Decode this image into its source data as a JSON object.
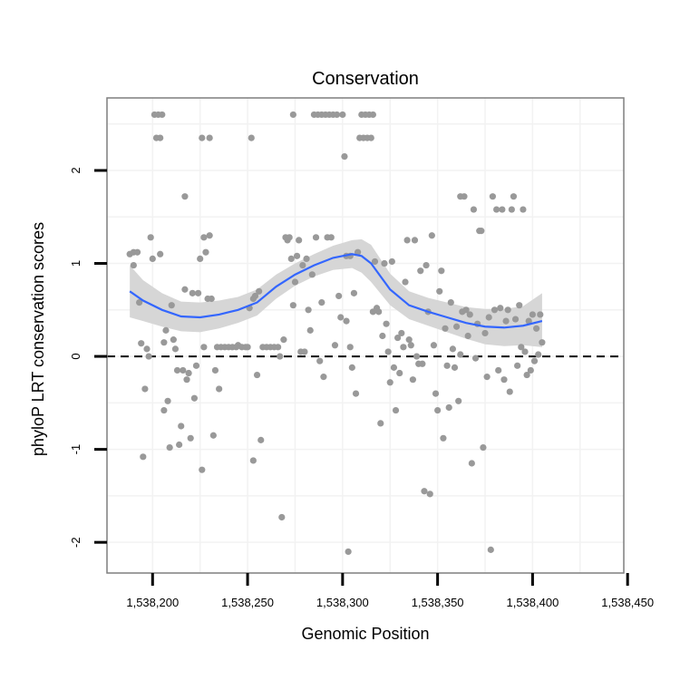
{
  "chart_data": {
    "type": "scatter",
    "title": "Conservation",
    "xlabel": "Genomic Position",
    "ylabel": "phyloP LRT conservation scores",
    "xlim": [
      1538176,
      1538448
    ],
    "ylim": [
      -2.33,
      2.78
    ],
    "x_ticks": [
      1538200,
      1538250,
      1538300,
      1538350,
      1538400,
      1538450
    ],
    "x_tick_labels": [
      "1,538,200",
      "1,538,250",
      "1,538,300",
      "1,538,350",
      "1,538,400",
      "1,538,450"
    ],
    "y_ticks": [
      -2,
      -1,
      0,
      1,
      2
    ],
    "y_tick_labels": [
      "-2",
      "-1",
      "0",
      "1",
      "2"
    ],
    "grid": true,
    "reference_line": {
      "y": 0,
      "style": "dashed",
      "color": "#000000"
    },
    "point_color": "#999999",
    "smooth_color": "#3366ff",
    "band_color": "#d6d6d6",
    "points": [
      [
        1538188,
        1.1
      ],
      [
        1538190,
        0.98
      ],
      [
        1538190,
        1.12
      ],
      [
        1538192,
        1.12
      ],
      [
        1538193,
        0.58
      ],
      [
        1538194,
        0.14
      ],
      [
        1538195,
        -1.08
      ],
      [
        1538196,
        -0.35
      ],
      [
        1538197,
        0.08
      ],
      [
        1538198,
        0.0
      ],
      [
        1538199,
        1.28
      ],
      [
        1538200,
        1.05
      ],
      [
        1538201,
        2.6
      ],
      [
        1538202,
        2.35
      ],
      [
        1538203,
        2.6
      ],
      [
        1538204,
        2.35
      ],
      [
        1538204,
        1.1
      ],
      [
        1538205,
        2.6
      ],
      [
        1538206,
        0.15
      ],
      [
        1538206,
        -0.58
      ],
      [
        1538207,
        0.28
      ],
      [
        1538208,
        -0.48
      ],
      [
        1538209,
        -0.98
      ],
      [
        1538210,
        0.55
      ],
      [
        1538211,
        0.18
      ],
      [
        1538212,
        0.08
      ],
      [
        1538213,
        -0.15
      ],
      [
        1538214,
        -0.95
      ],
      [
        1538215,
        -0.75
      ],
      [
        1538216,
        -0.15
      ],
      [
        1538217,
        1.72
      ],
      [
        1538217,
        0.72
      ],
      [
        1538218,
        -0.25
      ],
      [
        1538219,
        -0.18
      ],
      [
        1538220,
        -0.88
      ],
      [
        1538221,
        0.68
      ],
      [
        1538222,
        -0.45
      ],
      [
        1538223,
        -0.1
      ],
      [
        1538224,
        0.68
      ],
      [
        1538225,
        1.05
      ],
      [
        1538226,
        2.35
      ],
      [
        1538226,
        -1.22
      ],
      [
        1538227,
        1.28
      ],
      [
        1538227,
        0.1
      ],
      [
        1538228,
        1.12
      ],
      [
        1538229,
        0.62
      ],
      [
        1538230,
        2.35
      ],
      [
        1538230,
        1.3
      ],
      [
        1538231,
        0.62
      ],
      [
        1538232,
        -0.85
      ],
      [
        1538233,
        -0.15
      ],
      [
        1538234,
        0.1
      ],
      [
        1538235,
        -0.35
      ],
      [
        1538236,
        0.1
      ],
      [
        1538238,
        0.1
      ],
      [
        1538240,
        0.1
      ],
      [
        1538242,
        0.1
      ],
      [
        1538244,
        0.1
      ],
      [
        1538245,
        0.12
      ],
      [
        1538247,
        0.1
      ],
      [
        1538249,
        0.1
      ],
      [
        1538250,
        0.1
      ],
      [
        1538251,
        0.52
      ],
      [
        1538252,
        2.35
      ],
      [
        1538253,
        0.62
      ],
      [
        1538253,
        -1.12
      ],
      [
        1538254,
        0.65
      ],
      [
        1538255,
        -0.2
      ],
      [
        1538256,
        0.7
      ],
      [
        1538257,
        -0.9
      ],
      [
        1538258,
        0.1
      ],
      [
        1538260,
        0.1
      ],
      [
        1538262,
        0.1
      ],
      [
        1538264,
        0.1
      ],
      [
        1538266,
        0.1
      ],
      [
        1538267,
        0.0
      ],
      [
        1538268,
        -1.73
      ],
      [
        1538269,
        0.18
      ],
      [
        1538270,
        1.28
      ],
      [
        1538271,
        1.25
      ],
      [
        1538272,
        1.28
      ],
      [
        1538273,
        1.05
      ],
      [
        1538274,
        2.6
      ],
      [
        1538274,
        0.55
      ],
      [
        1538275,
        0.8
      ],
      [
        1538276,
        1.08
      ],
      [
        1538277,
        1.25
      ],
      [
        1538278,
        0.05
      ],
      [
        1538279,
        0.98
      ],
      [
        1538280,
        0.05
      ],
      [
        1538281,
        1.05
      ],
      [
        1538282,
        0.5
      ],
      [
        1538283,
        0.28
      ],
      [
        1538284,
        0.88
      ],
      [
        1538285,
        2.6
      ],
      [
        1538286,
        1.28
      ],
      [
        1538287,
        2.6
      ],
      [
        1538288,
        -0.05
      ],
      [
        1538289,
        2.6
      ],
      [
        1538289,
        0.58
      ],
      [
        1538290,
        -0.22
      ],
      [
        1538291,
        2.6
      ],
      [
        1538292,
        1.28
      ],
      [
        1538293,
        2.6
      ],
      [
        1538294,
        1.28
      ],
      [
        1538295,
        2.6
      ],
      [
        1538296,
        0.12
      ],
      [
        1538297,
        2.6
      ],
      [
        1538298,
        0.65
      ],
      [
        1538299,
        0.42
      ],
      [
        1538300,
        2.6
      ],
      [
        1538301,
        2.15
      ],
      [
        1538302,
        1.08
      ],
      [
        1538302,
        0.38
      ],
      [
        1538303,
        -2.1
      ],
      [
        1538304,
        1.08
      ],
      [
        1538304,
        0.1
      ],
      [
        1538305,
        -0.12
      ],
      [
        1538306,
        0.68
      ],
      [
        1538307,
        -0.4
      ],
      [
        1538308,
        1.12
      ],
      [
        1538309,
        2.35
      ],
      [
        1538310,
        2.6
      ],
      [
        1538311,
        2.35
      ],
      [
        1538312,
        2.6
      ],
      [
        1538313,
        2.35
      ],
      [
        1538314,
        2.6
      ],
      [
        1538315,
        2.35
      ],
      [
        1538316,
        2.6
      ],
      [
        1538316,
        0.48
      ],
      [
        1538317,
        1.02
      ],
      [
        1538318,
        0.52
      ],
      [
        1538319,
        0.48
      ],
      [
        1538320,
        -0.72
      ],
      [
        1538321,
        0.22
      ],
      [
        1538322,
        1.0
      ],
      [
        1538323,
        0.35
      ],
      [
        1538324,
        0.05
      ],
      [
        1538325,
        -0.28
      ],
      [
        1538326,
        1.02
      ],
      [
        1538327,
        -0.12
      ],
      [
        1538328,
        -0.58
      ],
      [
        1538329,
        0.2
      ],
      [
        1538330,
        -0.18
      ],
      [
        1538331,
        0.25
      ],
      [
        1538332,
        0.1
      ],
      [
        1538333,
        0.8
      ],
      [
        1538334,
        1.25
      ],
      [
        1538335,
        0.18
      ],
      [
        1538336,
        0.12
      ],
      [
        1538337,
        -0.25
      ],
      [
        1538338,
        1.25
      ],
      [
        1538339,
        0.0
      ],
      [
        1538340,
        -0.08
      ],
      [
        1538341,
        0.92
      ],
      [
        1538342,
        -0.08
      ],
      [
        1538343,
        -1.45
      ],
      [
        1538344,
        0.98
      ],
      [
        1538345,
        0.48
      ],
      [
        1538346,
        -1.48
      ],
      [
        1538347,
        1.3
      ],
      [
        1538348,
        0.12
      ],
      [
        1538349,
        -0.4
      ],
      [
        1538350,
        -0.58
      ],
      [
        1538351,
        0.7
      ],
      [
        1538352,
        0.92
      ],
      [
        1538353,
        -0.88
      ],
      [
        1538354,
        0.3
      ],
      [
        1538355,
        -0.1
      ],
      [
        1538356,
        -0.55
      ],
      [
        1538357,
        0.58
      ],
      [
        1538358,
        0.08
      ],
      [
        1538359,
        -0.12
      ],
      [
        1538360,
        0.32
      ],
      [
        1538361,
        -0.48
      ],
      [
        1538362,
        1.72
      ],
      [
        1538362,
        0.02
      ],
      [
        1538363,
        0.48
      ],
      [
        1538364,
        1.72
      ],
      [
        1538365,
        0.5
      ],
      [
        1538366,
        0.22
      ],
      [
        1538367,
        0.45
      ],
      [
        1538368,
        -1.15
      ],
      [
        1538369,
        1.58
      ],
      [
        1538370,
        -0.02
      ],
      [
        1538371,
        0.35
      ],
      [
        1538372,
        1.35
      ],
      [
        1538373,
        1.35
      ],
      [
        1538374,
        -0.98
      ],
      [
        1538375,
        0.25
      ],
      [
        1538376,
        -0.22
      ],
      [
        1538377,
        0.42
      ],
      [
        1538378,
        -2.08
      ],
      [
        1538379,
        1.72
      ],
      [
        1538380,
        0.5
      ],
      [
        1538381,
        1.58
      ],
      [
        1538382,
        -0.15
      ],
      [
        1538383,
        0.52
      ],
      [
        1538384,
        1.58
      ],
      [
        1538385,
        -0.25
      ],
      [
        1538386,
        0.38
      ],
      [
        1538387,
        0.5
      ],
      [
        1538388,
        -0.38
      ],
      [
        1538389,
        1.58
      ],
      [
        1538390,
        1.72
      ],
      [
        1538391,
        0.4
      ],
      [
        1538392,
        -0.1
      ],
      [
        1538393,
        0.55
      ],
      [
        1538394,
        0.1
      ],
      [
        1538395,
        1.58
      ],
      [
        1538396,
        0.05
      ],
      [
        1538397,
        -0.2
      ],
      [
        1538398,
        0.38
      ],
      [
        1538399,
        -0.15
      ],
      [
        1538400,
        0.45
      ],
      [
        1538401,
        -0.05
      ],
      [
        1538402,
        0.3
      ],
      [
        1538403,
        0.02
      ],
      [
        1538404,
        0.45
      ],
      [
        1538405,
        0.15
      ]
    ],
    "smooth_line": {
      "x": [
        1538188,
        1538195,
        1538205,
        1538215,
        1538225,
        1538235,
        1538245,
        1538255,
        1538265,
        1538275,
        1538285,
        1538295,
        1538305,
        1538310,
        1538315,
        1538325,
        1538335,
        1538345,
        1538355,
        1538365,
        1538375,
        1538385,
        1538395,
        1538405
      ],
      "y": [
        0.7,
        0.6,
        0.5,
        0.43,
        0.42,
        0.45,
        0.5,
        0.58,
        0.75,
        0.88,
        0.98,
        1.06,
        1.1,
        1.08,
        1.0,
        0.72,
        0.55,
        0.48,
        0.42,
        0.36,
        0.32,
        0.31,
        0.33,
        0.38
      ],
      "lower": [
        0.42,
        0.38,
        0.32,
        0.27,
        0.26,
        0.3,
        0.36,
        0.44,
        0.62,
        0.76,
        0.86,
        0.93,
        0.95,
        0.9,
        0.8,
        0.55,
        0.4,
        0.33,
        0.26,
        0.19,
        0.13,
        0.11,
        0.12,
        0.1
      ],
      "upper": [
        0.98,
        0.82,
        0.68,
        0.59,
        0.58,
        0.6,
        0.64,
        0.72,
        0.88,
        1.0,
        1.1,
        1.19,
        1.25,
        1.26,
        1.2,
        0.89,
        0.7,
        0.63,
        0.58,
        0.53,
        0.51,
        0.51,
        0.54,
        0.68
      ]
    }
  }
}
